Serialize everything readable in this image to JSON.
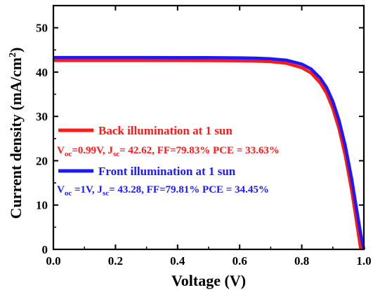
{
  "chart_data": {
    "type": "line",
    "xlabel": "Voltage (V)",
    "ylabel_main": "Current density (mA/cm",
    "ylabel_sup": "2",
    "ylabel_end": ")",
    "xlim": [
      0,
      1.0
    ],
    "ylim": [
      0,
      55
    ],
    "xticks": [
      0.0,
      0.2,
      0.4,
      0.6,
      0.8,
      1.0
    ],
    "xtick_labels": [
      "0.0",
      "0.2",
      "0.4",
      "0.6",
      "0.8",
      "1.0"
    ],
    "yticks": [
      0,
      10,
      20,
      30,
      40,
      50
    ],
    "ytick_labels": [
      "0",
      "10",
      "20",
      "30",
      "40",
      "50"
    ],
    "grid": false,
    "series": [
      {
        "name": "Back illumination at 1 sun",
        "color": "#ff1a1a",
        "jsc": 42.62,
        "voc": 0.99,
        "x": [
          0.0,
          0.1,
          0.2,
          0.3,
          0.4,
          0.5,
          0.6,
          0.65,
          0.7,
          0.75,
          0.8,
          0.83,
          0.86,
          0.88,
          0.9,
          0.92,
          0.94,
          0.96,
          0.97,
          0.98,
          0.99
        ],
        "y": [
          42.62,
          42.62,
          42.62,
          42.62,
          42.61,
          42.6,
          42.55,
          42.5,
          42.35,
          42.0,
          41.0,
          39.8,
          37.5,
          35.2,
          31.8,
          27.2,
          21.2,
          13.6,
          9.2,
          4.6,
          0.0
        ],
        "annotation": {
          "voc_sub": "oc",
          "voc_value": "=0.99V, J",
          "jsc_sub": "sc",
          "jsc_value": "= 42.62, FF=79.83% PCE = 33.63%"
        }
      },
      {
        "name": "Front illumination at 1 sun",
        "color": "#1a1aff",
        "jsc": 43.28,
        "voc": 1.0,
        "x": [
          0.0,
          0.1,
          0.2,
          0.3,
          0.4,
          0.5,
          0.6,
          0.65,
          0.7,
          0.75,
          0.8,
          0.83,
          0.86,
          0.88,
          0.9,
          0.92,
          0.94,
          0.96,
          0.98,
          0.99,
          1.0
        ],
        "y": [
          43.28,
          43.28,
          43.28,
          43.28,
          43.27,
          43.26,
          43.2,
          43.15,
          43.0,
          42.7,
          41.8,
          40.7,
          38.6,
          36.5,
          33.4,
          29.1,
          23.4,
          16.2,
          7.6,
          3.4,
          0.0
        ],
        "annotation": {
          "voc_sub": "oc",
          "voc_value": " =1V, J",
          "jsc_sub": "sc",
          "jsc_value": "= 43.28, FF=79.81% PCE = 34.45%"
        }
      }
    ],
    "annotation_prefix": "V",
    "annotation_jprefix": "J"
  }
}
